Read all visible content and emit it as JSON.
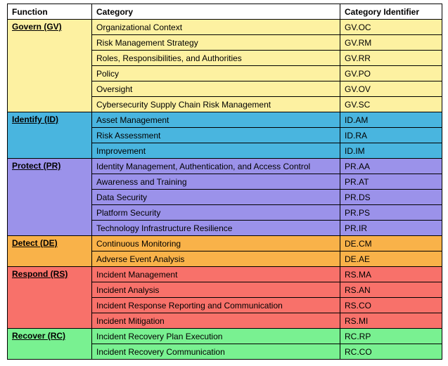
{
  "headers": {
    "function": "Function",
    "category": "Category",
    "identifier": "Category Identifier"
  },
  "functions": [
    {
      "name": "Govern (GV)",
      "color": "#fdf1a1",
      "categories": [
        {
          "name": "Organizational Context",
          "id": "GV.OC"
        },
        {
          "name": "Risk Management Strategy",
          "id": "GV.RM"
        },
        {
          "name": "Roles, Responsibilities, and Authorities",
          "id": "GV.RR"
        },
        {
          "name": "Policy",
          "id": "GV.PO"
        },
        {
          "name": "Oversight",
          "id": "GV.OV"
        },
        {
          "name": "Cybersecurity Supply Chain Risk Management",
          "id": "GV.SC"
        }
      ]
    },
    {
      "name": "Identify (ID)",
      "color": "#49b5df",
      "categories": [
        {
          "name": "Asset Management",
          "id": "ID.AM"
        },
        {
          "name": "Risk Assessment",
          "id": "ID.RA"
        },
        {
          "name": "Improvement",
          "id": "ID.IM"
        }
      ]
    },
    {
      "name": "Protect (PR)",
      "color": "#9b92ea",
      "categories": [
        {
          "name": "Identity Management, Authentication, and Access Control",
          "id": "PR.AA"
        },
        {
          "name": "Awareness and Training",
          "id": "PR.AT"
        },
        {
          "name": "Data Security",
          "id": "PR.DS"
        },
        {
          "name": "Platform Security",
          "id": "PR.PS"
        },
        {
          "name": "Technology Infrastructure Resilience",
          "id": "PR.IR"
        }
      ]
    },
    {
      "name": "Detect (DE)",
      "color": "#f9b249",
      "categories": [
        {
          "name": "Continuous Monitoring",
          "id": "DE.CM"
        },
        {
          "name": "Adverse Event Analysis",
          "id": "DE.AE"
        }
      ]
    },
    {
      "name": "Respond (RS)",
      "color": "#f8716a",
      "categories": [
        {
          "name": "Incident Management",
          "id": "RS.MA"
        },
        {
          "name": "Incident Analysis",
          "id": "RS.AN"
        },
        {
          "name": "Incident Response Reporting and Communication",
          "id": "RS.CO"
        },
        {
          "name": "Incident Mitigation",
          "id": "RS.MI"
        }
      ]
    },
    {
      "name": "Recover (RC)",
      "color": "#79f191",
      "categories": [
        {
          "name": "Incident Recovery Plan Execution",
          "id": "RC.RP"
        },
        {
          "name": "Incident Recovery Communication",
          "id": "RC.CO"
        }
      ]
    }
  ]
}
